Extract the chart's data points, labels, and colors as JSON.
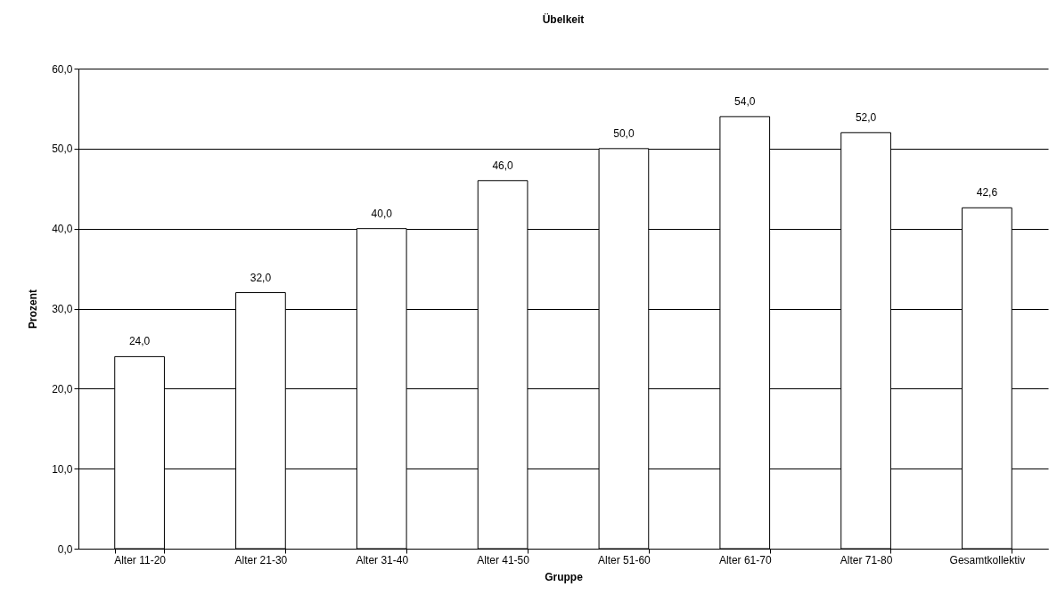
{
  "chart_data": {
    "type": "bar",
    "title": "Übelkeit",
    "xlabel": "Gruppe",
    "ylabel": "Prozent",
    "categories": [
      "Alter 11-20",
      "Alter 21-30",
      "Alter 31-40",
      "Alter 41-50",
      "Alter 51-60",
      "Alter 61-70",
      "Alter 71-80",
      "Gesamtkollektiv"
    ],
    "values": [
      24.0,
      32.0,
      40.0,
      46.0,
      50.0,
      54.0,
      52.0,
      42.6
    ],
    "value_labels": [
      "24,0",
      "32,0",
      "40,0",
      "46,0",
      "50,0",
      "54,0",
      "52,0",
      "42,6"
    ],
    "color": "#ffffff",
    "ylim": [
      0,
      60
    ],
    "yticks": [
      {
        "value": 0,
        "label": "0,0"
      },
      {
        "value": 10,
        "label": "10,0"
      },
      {
        "value": 20,
        "label": "20,0"
      },
      {
        "value": 30,
        "label": "30,0"
      },
      {
        "value": 40,
        "label": "40,0"
      },
      {
        "value": 50,
        "label": "50,0"
      },
      {
        "value": 60,
        "label": "60,0"
      }
    ],
    "grid": "y"
  }
}
